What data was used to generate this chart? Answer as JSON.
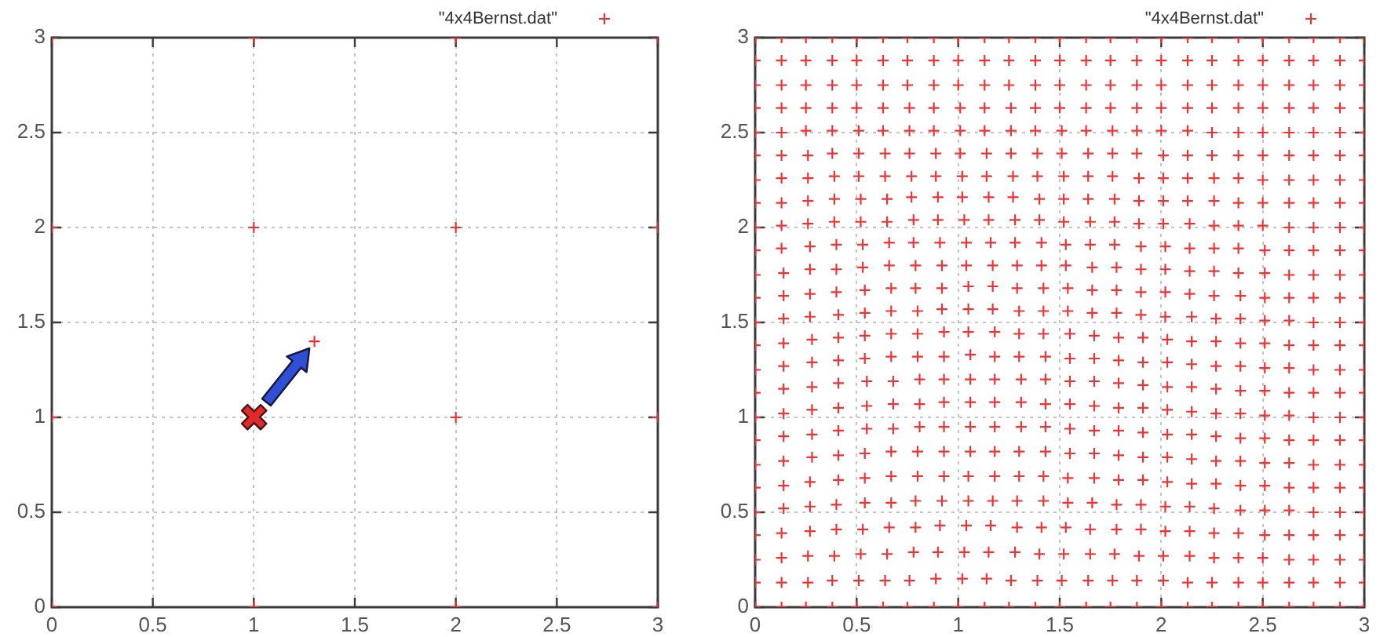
{
  "chart_data": [
    {
      "type": "scatter",
      "series": [
        {
          "name": "\"4x4Bernst.dat\"",
          "color": "#ee3333",
          "x": [
            0,
            1,
            2,
            3,
            0,
            1.3,
            2,
            3,
            0,
            1,
            2,
            3,
            0,
            1,
            2,
            3
          ],
          "values": [
            0,
            0,
            0,
            0,
            1,
            1.4,
            1,
            1,
            2,
            2,
            2,
            2,
            3,
            3,
            3,
            3
          ]
        }
      ],
      "xlim": [
        0,
        3
      ],
      "ylim": [
        0,
        3
      ],
      "xticks": [
        0,
        0.5,
        1,
        1.5,
        2,
        2.5,
        3
      ],
      "yticks": [
        0,
        0.5,
        1,
        1.5,
        2,
        2.5,
        3
      ],
      "grid": true,
      "legend": "top right",
      "marker": "cross"
    },
    {
      "type": "scatter",
      "series": [
        {
          "name": "\"4x4Bernst.dat\"",
          "color": "#ee3333",
          "x": [
            0,
            0.13,
            0.25,
            0.38,
            0.5,
            0.63,
            0.75,
            0.88,
            1,
            1.13,
            1.25,
            1.38,
            1.5,
            1.63,
            1.75,
            1.88,
            2,
            2.13,
            2.25,
            2.38,
            2.5,
            2.63,
            2.75,
            2.88,
            3,
            0,
            0.13,
            0.26,
            0.38,
            0.51,
            0.64,
            0.76,
            0.89,
            1.02,
            1.14,
            1.26,
            1.39,
            1.51,
            1.64,
            1.76,
            1.88,
            2.01,
            2.13,
            2.25,
            2.38,
            2.5,
            2.63,
            2.75,
            2.88,
            3,
            0,
            0.13,
            0.26,
            0.39,
            0.52,
            0.65,
            0.78,
            0.9,
            1.03,
            1.15,
            1.28,
            1.4,
            1.52,
            1.65,
            1.77,
            1.89,
            2.01,
            2.14,
            2.26,
            2.38,
            2.5,
            2.63,
            2.75,
            2.88,
            3,
            0,
            0.13,
            0.27,
            0.4,
            0.53,
            0.66,
            0.79,
            0.91,
            1.04,
            1.16,
            1.29,
            1.41,
            1.53,
            1.65,
            1.78,
            1.9,
            2.02,
            2.14,
            2.26,
            2.38,
            2.51,
            2.63,
            2.75,
            2.88,
            3,
            0,
            0.14,
            0.27,
            0.4,
            0.54,
            0.67,
            0.79,
            0.92,
            1.05,
            1.17,
            1.29,
            1.42,
            1.54,
            1.66,
            1.78,
            1.9,
            2.02,
            2.14,
            2.26,
            2.39,
            2.51,
            2.63,
            2.75,
            2.88,
            3,
            0,
            0.14,
            0.27,
            0.41,
            0.54,
            0.67,
            0.8,
            0.93,
            1.05,
            1.18,
            1.3,
            1.42,
            1.54,
            1.67,
            1.79,
            1.91,
            2.03,
            2.15,
            2.27,
            2.39,
            2.51,
            2.63,
            2.75,
            2.88,
            3,
            0,
            0.14,
            0.28,
            0.41,
            0.54,
            0.67,
            0.8,
            0.93,
            1.06,
            1.18,
            1.3,
            1.43,
            1.55,
            1.67,
            1.79,
            1.91,
            2.03,
            2.15,
            2.27,
            2.39,
            2.51,
            2.63,
            2.75,
            2.88,
            3,
            0,
            0.14,
            0.28,
            0.41,
            0.55,
            0.68,
            0.81,
            0.93,
            1.06,
            1.18,
            1.31,
            1.43,
            1.55,
            1.67,
            1.79,
            1.91,
            2.03,
            2.15,
            2.27,
            2.39,
            2.51,
            2.63,
            2.75,
            2.88,
            3,
            0,
            0.14,
            0.28,
            0.41,
            0.55,
            0.68,
            0.81,
            0.93,
            1.06,
            1.18,
            1.31,
            1.43,
            1.55,
            1.67,
            1.79,
            1.91,
            2.03,
            2.15,
            2.27,
            2.39,
            2.51,
            2.63,
            2.75,
            2.88,
            3,
            0,
            0.14,
            0.28,
            0.41,
            0.55,
            0.68,
            0.81,
            0.93,
            1.06,
            1.18,
            1.31,
            1.43,
            1.55,
            1.67,
            1.79,
            1.91,
            2.03,
            2.15,
            2.27,
            2.39,
            2.51,
            2.63,
            2.75,
            2.88,
            3,
            0,
            0.14,
            0.28,
            0.41,
            0.54,
            0.67,
            0.8,
            0.93,
            1.06,
            1.18,
            1.3,
            1.43,
            1.55,
            1.67,
            1.79,
            1.91,
            2.03,
            2.15,
            2.27,
            2.39,
            2.51,
            2.63,
            2.75,
            2.88,
            3,
            0,
            0.14,
            0.28,
            0.41,
            0.54,
            0.67,
            0.8,
            0.93,
            1.05,
            1.18,
            1.3,
            1.42,
            1.55,
            1.67,
            1.79,
            1.91,
            2.03,
            2.15,
            2.27,
            2.39,
            2.51,
            2.63,
            2.75,
            2.88,
            3,
            0,
            0.14,
            0.27,
            0.41,
            0.54,
            0.67,
            0.8,
            0.92,
            1.05,
            1.17,
            1.3,
            1.42,
            1.54,
            1.66,
            1.78,
            1.9,
            2.02,
            2.15,
            2.27,
            2.39,
            2.51,
            2.63,
            2.75,
            2.88,
            3,
            0,
            0.14,
            0.27,
            0.4,
            0.54,
            0.67,
            0.79,
            0.92,
            1.05,
            1.17,
            1.29,
            1.42,
            1.54,
            1.66,
            1.78,
            1.9,
            2.02,
            2.14,
            2.26,
            2.39,
            2.51,
            2.63,
            2.75,
            2.88,
            3,
            0,
            0.14,
            0.27,
            0.4,
            0.53,
            0.66,
            0.79,
            0.92,
            1.04,
            1.17,
            1.29,
            1.41,
            1.53,
            1.66,
            1.78,
            1.9,
            2.02,
            2.14,
            2.26,
            2.38,
            2.51,
            2.63,
            2.75,
            2.88,
            3,
            0,
            0.13,
            0.27,
            0.4,
            0.53,
            0.66,
            0.78,
            0.91,
            1.04,
            1.16,
            1.28,
            1.41,
            1.53,
            1.65,
            1.77,
            1.9,
            2.02,
            2.14,
            2.26,
            2.38,
            2.51,
            2.63,
            2.75,
            2.88,
            3,
            0,
            0.13,
            0.26,
            0.39,
            0.52,
            0.65,
            0.78,
            0.9,
            1.03,
            1.15,
            1.28,
            1.4,
            1.52,
            1.65,
            1.77,
            1.89,
            2.01,
            2.14,
            2.26,
            2.38,
            2.5,
            2.63,
            2.75,
            2.88,
            3,
            0,
            0.13,
            0.26,
            0.39,
            0.52,
            0.65,
            0.77,
            0.9,
            1.02,
            1.15,
            1.27,
            1.4,
            1.52,
            1.64,
            1.77,
            1.89,
            2.01,
            2.13,
            2.26,
            2.38,
            2.5,
            2.63,
            2.75,
            2.88,
            3,
            0,
            0.13,
            0.26,
            0.39,
            0.51,
            0.64,
            0.77,
            0.89,
            1.02,
            1.14,
            1.27,
            1.39,
            1.52,
            1.64,
            1.76,
            1.89,
            2.01,
            2.13,
            2.26,
            2.38,
            2.5,
            2.63,
            2.75,
            2.88,
            3,
            0,
            0.13,
            0.26,
            0.38,
            0.51,
            0.64,
            0.76,
            0.89,
            1.01,
            1.14,
            1.26,
            1.39,
            1.51,
            1.64,
            1.76,
            1.88,
            2.01,
            2.13,
            2.25,
            2.38,
            2.5,
            2.63,
            2.75,
            2.88,
            3,
            0,
            0.13,
            0.25,
            0.38,
            0.51,
            0.63,
            0.76,
            0.88,
            1.01,
            1.13,
            1.26,
            1.38,
            1.51,
            1.63,
            1.76,
            1.88,
            2,
            2.13,
            2.25,
            2.38,
            2.5,
            2.63,
            2.75,
            2.88,
            3,
            0,
            0.13,
            0.25,
            0.38,
            0.5,
            0.63,
            0.76,
            0.88,
            1.01,
            1.13,
            1.26,
            1.38,
            1.5,
            1.63,
            1.75,
            1.88,
            2,
            2.13,
            2.25,
            2.38,
            2.5,
            2.63,
            2.75,
            2.88,
            3,
            0,
            0.13,
            0.25,
            0.38,
            0.5,
            0.63,
            0.75,
            0.88,
            1,
            1.13,
            1.25,
            1.38,
            1.5,
            1.63,
            1.75,
            1.88,
            2,
            2.13,
            2.25,
            2.38,
            2.5,
            2.63,
            2.75,
            2.88,
            3,
            0,
            0.13,
            0.25,
            0.38,
            0.5,
            0.63,
            0.75,
            0.88,
            1,
            1.13,
            1.25,
            1.38,
            1.5,
            1.63,
            1.75,
            1.88,
            2,
            2.13,
            2.25,
            2.38,
            2.5,
            2.63,
            2.75,
            2.88,
            3,
            0,
            0.13,
            0.25,
            0.38,
            0.5,
            0.63,
            0.75,
            0.88,
            1,
            1.13,
            1.25,
            1.38,
            1.5,
            1.63,
            1.75,
            1.88,
            2,
            2.13,
            2.25,
            2.38,
            2.5,
            2.63,
            2.75,
            2.88,
            3
          ],
          "values": [
            0,
            0,
            0,
            0,
            0,
            0,
            0,
            0,
            0,
            0,
            0,
            0,
            0,
            0,
            0,
            0,
            0,
            0,
            0,
            0,
            0,
            0,
            0,
            0,
            0,
            0.13,
            0.13,
            0.13,
            0.14,
            0.14,
            0.14,
            0.14,
            0.15,
            0.15,
            0.15,
            0.14,
            0.14,
            0.14,
            0.14,
            0.14,
            0.14,
            0.14,
            0.13,
            0.13,
            0.13,
            0.13,
            0.13,
            0.13,
            0.13,
            0.13,
            0.25,
            0.26,
            0.27,
            0.27,
            0.28,
            0.28,
            0.29,
            0.29,
            0.29,
            0.29,
            0.29,
            0.28,
            0.28,
            0.28,
            0.28,
            0.27,
            0.27,
            0.27,
            0.26,
            0.26,
            0.26,
            0.25,
            0.25,
            0.25,
            0.25,
            0.38,
            0.39,
            0.4,
            0.41,
            0.41,
            0.42,
            0.42,
            0.43,
            0.43,
            0.43,
            0.42,
            0.42,
            0.42,
            0.41,
            0.41,
            0.41,
            0.4,
            0.4,
            0.39,
            0.39,
            0.38,
            0.38,
            0.38,
            0.38,
            0.38,
            0.5,
            0.52,
            0.53,
            0.54,
            0.55,
            0.55,
            0.56,
            0.56,
            0.56,
            0.56,
            0.56,
            0.56,
            0.55,
            0.55,
            0.54,
            0.54,
            0.53,
            0.53,
            0.52,
            0.51,
            0.51,
            0.51,
            0.5,
            0.5,
            0.5,
            0.63,
            0.64,
            0.66,
            0.67,
            0.68,
            0.69,
            0.69,
            0.69,
            0.69,
            0.69,
            0.69,
            0.69,
            0.68,
            0.68,
            0.67,
            0.67,
            0.66,
            0.65,
            0.65,
            0.64,
            0.64,
            0.63,
            0.63,
            0.63,
            0.63,
            0.75,
            0.77,
            0.79,
            0.8,
            0.81,
            0.82,
            0.82,
            0.82,
            0.82,
            0.82,
            0.82,
            0.82,
            0.81,
            0.81,
            0.8,
            0.79,
            0.79,
            0.78,
            0.77,
            0.77,
            0.76,
            0.76,
            0.75,
            0.75,
            0.75,
            0.88,
            0.9,
            0.91,
            0.93,
            0.94,
            0.94,
            0.95,
            0.95,
            0.95,
            0.95,
            0.95,
            0.95,
            0.94,
            0.93,
            0.93,
            0.92,
            0.91,
            0.91,
            0.9,
            0.89,
            0.89,
            0.88,
            0.88,
            0.88,
            0.88,
            1,
            1.02,
            1.04,
            1.05,
            1.06,
            1.07,
            1.07,
            1.08,
            1.08,
            1.08,
            1.08,
            1.07,
            1.07,
            1.06,
            1.05,
            1.05,
            1.04,
            1.03,
            1.02,
            1.02,
            1.01,
            1.01,
            1,
            1,
            1,
            1.13,
            1.15,
            1.16,
            1.18,
            1.19,
            1.19,
            1.2,
            1.2,
            1.2,
            1.2,
            1.2,
            1.2,
            1.19,
            1.19,
            1.18,
            1.17,
            1.16,
            1.16,
            1.15,
            1.14,
            1.14,
            1.13,
            1.13,
            1.13,
            1.13,
            1.25,
            1.27,
            1.29,
            1.3,
            1.31,
            1.32,
            1.32,
            1.32,
            1.33,
            1.32,
            1.32,
            1.32,
            1.31,
            1.31,
            1.3,
            1.29,
            1.29,
            1.28,
            1.27,
            1.27,
            1.26,
            1.26,
            1.25,
            1.25,
            1.25,
            1.38,
            1.39,
            1.41,
            1.42,
            1.43,
            1.44,
            1.44,
            1.45,
            1.45,
            1.45,
            1.44,
            1.44,
            1.44,
            1.43,
            1.42,
            1.42,
            1.41,
            1.4,
            1.4,
            1.39,
            1.39,
            1.38,
            1.38,
            1.38,
            1.38,
            1.5,
            1.52,
            1.53,
            1.54,
            1.55,
            1.56,
            1.56,
            1.57,
            1.57,
            1.57,
            1.56,
            1.56,
            1.56,
            1.55,
            1.55,
            1.54,
            1.53,
            1.53,
            1.52,
            1.52,
            1.51,
            1.51,
            1.5,
            1.5,
            1.5,
            1.63,
            1.64,
            1.65,
            1.66,
            1.67,
            1.68,
            1.68,
            1.68,
            1.69,
            1.69,
            1.68,
            1.68,
            1.68,
            1.67,
            1.67,
            1.66,
            1.66,
            1.65,
            1.64,
            1.64,
            1.63,
            1.63,
            1.63,
            1.63,
            1.63,
            1.75,
            1.76,
            1.78,
            1.78,
            1.79,
            1.8,
            1.8,
            1.8,
            1.8,
            1.8,
            1.8,
            1.8,
            1.8,
            1.79,
            1.79,
            1.78,
            1.78,
            1.77,
            1.77,
            1.76,
            1.76,
            1.75,
            1.75,
            1.75,
            1.75,
            1.88,
            1.89,
            1.9,
            1.91,
            1.91,
            1.92,
            1.92,
            1.92,
            1.92,
            1.92,
            1.92,
            1.92,
            1.91,
            1.91,
            1.91,
            1.9,
            1.9,
            1.89,
            1.89,
            1.89,
            1.88,
            1.88,
            1.88,
            1.88,
            1.88,
            2,
            2.01,
            2.02,
            2.03,
            2.03,
            2.03,
            2.04,
            2.04,
            2.04,
            2.04,
            2.04,
            2.04,
            2.03,
            2.03,
            2.03,
            2.02,
            2.02,
            2.02,
            2.01,
            2.01,
            2.01,
            2,
            2,
            2,
            2,
            2.13,
            2.13,
            2.14,
            2.15,
            2.15,
            2.15,
            2.16,
            2.16,
            2.16,
            2.16,
            2.16,
            2.15,
            2.15,
            2.15,
            2.15,
            2.14,
            2.14,
            2.14,
            2.14,
            2.13,
            2.13,
            2.13,
            2.13,
            2.13,
            2.13,
            2.25,
            2.26,
            2.26,
            2.27,
            2.27,
            2.27,
            2.27,
            2.27,
            2.27,
            2.27,
            2.27,
            2.27,
            2.27,
            2.27,
            2.27,
            2.26,
            2.26,
            2.26,
            2.26,
            2.26,
            2.25,
            2.25,
            2.25,
            2.25,
            2.25,
            2.38,
            2.38,
            2.38,
            2.39,
            2.39,
            2.39,
            2.39,
            2.39,
            2.39,
            2.39,
            2.39,
            2.39,
            2.39,
            2.39,
            2.39,
            2.39,
            2.38,
            2.38,
            2.38,
            2.38,
            2.38,
            2.38,
            2.38,
            2.38,
            2.38,
            2.5,
            2.5,
            2.51,
            2.51,
            2.51,
            2.51,
            2.51,
            2.51,
            2.51,
            2.51,
            2.51,
            2.51,
            2.51,
            2.51,
            2.51,
            2.51,
            2.51,
            2.51,
            2.5,
            2.5,
            2.5,
            2.5,
            2.5,
            2.5,
            2.5,
            2.63,
            2.63,
            2.63,
            2.63,
            2.63,
            2.63,
            2.63,
            2.63,
            2.63,
            2.63,
            2.63,
            2.63,
            2.63,
            2.63,
            2.63,
            2.63,
            2.63,
            2.63,
            2.63,
            2.63,
            2.63,
            2.63,
            2.63,
            2.63,
            2.63,
            2.75,
            2.75,
            2.75,
            2.75,
            2.75,
            2.75,
            2.75,
            2.75,
            2.75,
            2.75,
            2.75,
            2.75,
            2.75,
            2.75,
            2.75,
            2.75,
            2.75,
            2.75,
            2.75,
            2.75,
            2.75,
            2.75,
            2.75,
            2.75,
            2.75,
            2.88,
            2.88,
            2.88,
            2.88,
            2.88,
            2.88,
            2.88,
            2.88,
            2.88,
            2.88,
            2.88,
            2.88,
            2.88,
            2.88,
            2.88,
            2.88,
            2.88,
            2.88,
            2.88,
            2.88,
            2.88,
            2.88,
            2.88,
            2.88,
            2.88,
            3,
            3,
            3,
            3,
            3,
            3,
            3,
            3,
            3,
            3,
            3,
            3,
            3,
            3,
            3,
            3,
            3,
            3,
            3,
            3,
            3,
            3,
            3,
            3,
            3
          ]
        }
      ],
      "xlim": [
        0,
        3
      ],
      "ylim": [
        0,
        3
      ],
      "xticks": [
        0,
        0.5,
        1,
        1.5,
        2,
        2.5,
        3
      ],
      "yticks": [
        0,
        0.5,
        1,
        1.5,
        2,
        2.5,
        3
      ],
      "grid": true,
      "legend": "top right",
      "marker": "cross"
    }
  ]
}
